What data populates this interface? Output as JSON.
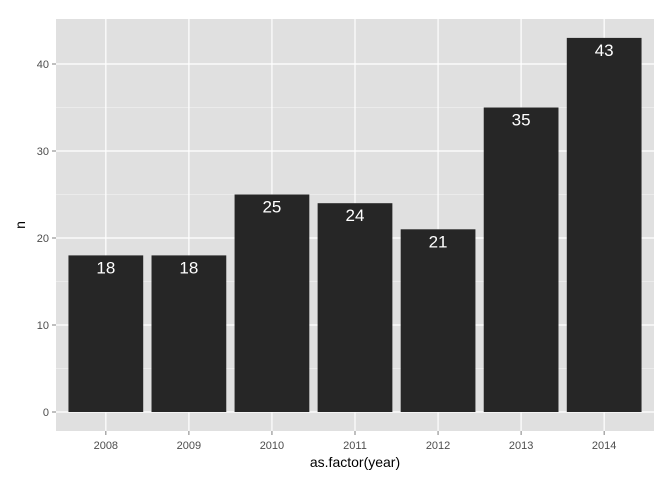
{
  "chart_data": {
    "type": "bar",
    "title": "",
    "xlabel": "as.factor(year)",
    "ylabel": "n",
    "categories": [
      "2008",
      "2009",
      "2010",
      "2011",
      "2012",
      "2013",
      "2014"
    ],
    "values": [
      18,
      18,
      25,
      24,
      21,
      35,
      43
    ],
    "value_labels": [
      "18",
      "18",
      "25",
      "24",
      "21",
      "35",
      "43"
    ],
    "y_ticks": [
      0,
      10,
      20,
      30,
      40
    ],
    "y_tick_labels": [
      "0",
      "10",
      "20",
      "30",
      "40"
    ],
    "ylim": [
      -2.15,
      45.15
    ],
    "grid": true,
    "legend": "none",
    "colors": {
      "bar": "#262626",
      "panel": "#e0e0e0",
      "grid_major": "#ffffff",
      "grid_minor": "#ebebeb",
      "bar_label": "#ffffff",
      "tick_label": "#4d4d4d"
    }
  }
}
